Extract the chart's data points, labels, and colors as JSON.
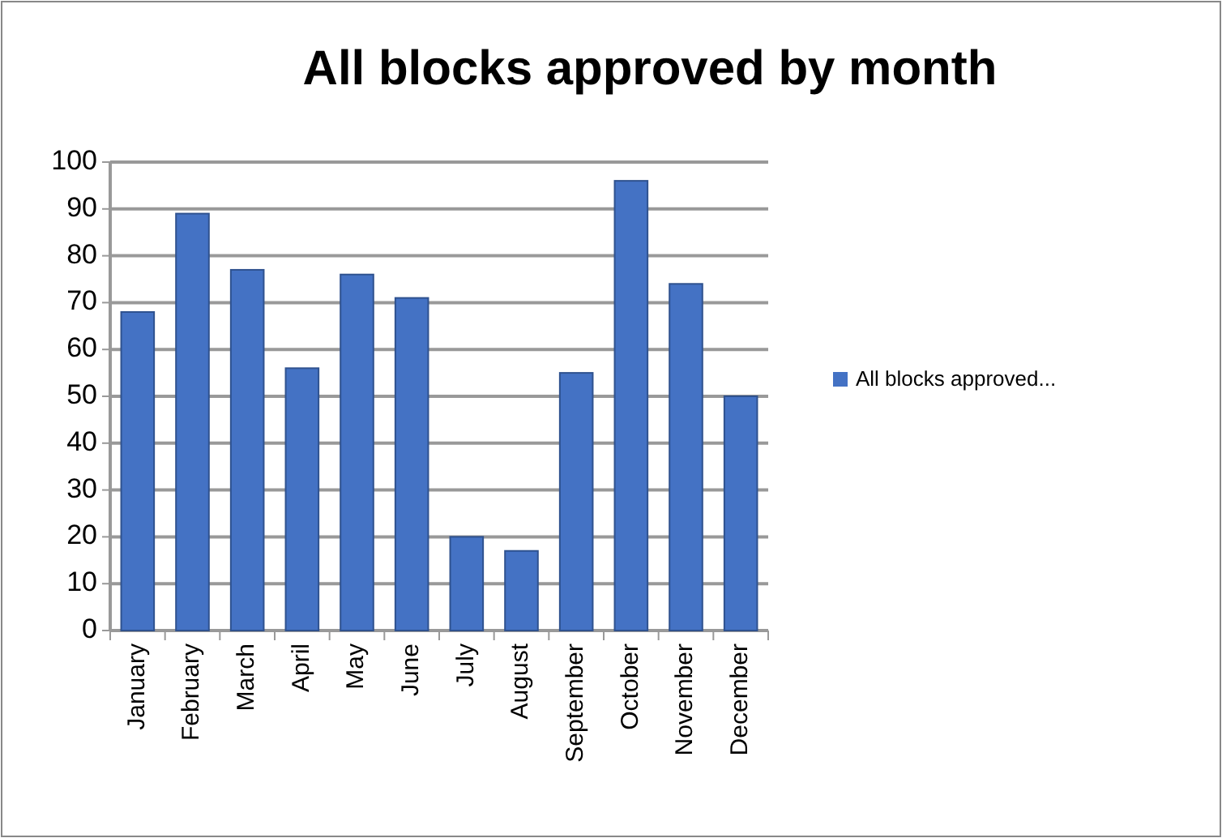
{
  "chart_data": {
    "type": "bar",
    "title": "All blocks approved by month",
    "categories": [
      "January",
      "February",
      "March",
      "April",
      "May",
      "June",
      "July",
      "August",
      "September",
      "October",
      "November",
      "December"
    ],
    "series": [
      {
        "name": "All blocks approved...",
        "color": "#4472c4",
        "values": [
          68,
          89,
          77,
          56,
          76,
          71,
          20,
          17,
          55,
          96,
          74,
          50
        ]
      }
    ],
    "ylim": [
      0,
      100
    ],
    "yticks": [
      0,
      10,
      20,
      30,
      40,
      50,
      60,
      70,
      80,
      90,
      100
    ],
    "grid": "y",
    "legend": "right"
  }
}
